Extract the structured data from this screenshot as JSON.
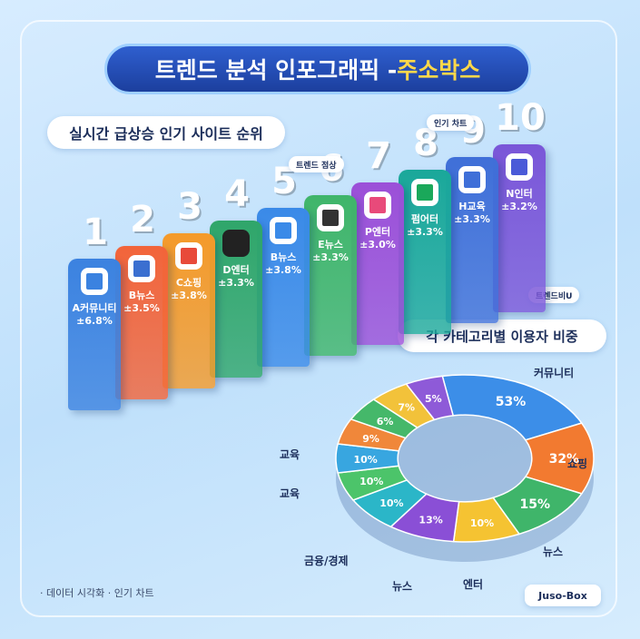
{
  "header": {
    "title": "트렌드 분석 인포그래픽 - ",
    "title_highlight": "주소박스"
  },
  "ranking": {
    "title": "실시간 급상승 인기 사이트 순위",
    "items": [
      {
        "rank": "1",
        "name": "A커뮤니티",
        "change": "±6.8%"
      },
      {
        "rank": "2",
        "name": "B뉴스",
        "change": "±3.5%"
      },
      {
        "rank": "3",
        "name": "C쇼핑",
        "change": "±3.8%"
      },
      {
        "rank": "4",
        "name": "D엔터",
        "change": "±3.3%"
      },
      {
        "rank": "5",
        "name": "B뉴스",
        "change": "±3.8%"
      },
      {
        "rank": "6",
        "name": "E뉴스",
        "change": "±3.3%"
      },
      {
        "rank": "7",
        "name": "P엔터",
        "change": "±3.0%"
      },
      {
        "rank": "8",
        "name": "펌어터",
        "change": "±3.3%"
      },
      {
        "rank": "9",
        "name": "H교육",
        "change": "±3.3%"
      },
      {
        "rank": "10",
        "name": "N인터",
        "change": "±3.2%"
      }
    ],
    "tags": [
      "트렌드 점상",
      "인기 차트",
      "트렌드비U"
    ]
  },
  "donut": {
    "title": "각 카테고리별 이용자 비중",
    "segments": [
      "53%",
      "32%",
      "15%",
      "10%",
      "13%",
      "10%",
      "10%",
      "10%",
      "9%",
      "6%",
      "7%",
      "5%"
    ],
    "categories": [
      "커뮤니티",
      "쇼핑",
      "뉴스",
      "엔터",
      "뉴스",
      "금융/경제",
      "교육",
      "교육"
    ]
  },
  "footer": {
    "note": "· 데이터 시각화  · 인기 차트",
    "brand": "Juso-Box"
  }
}
